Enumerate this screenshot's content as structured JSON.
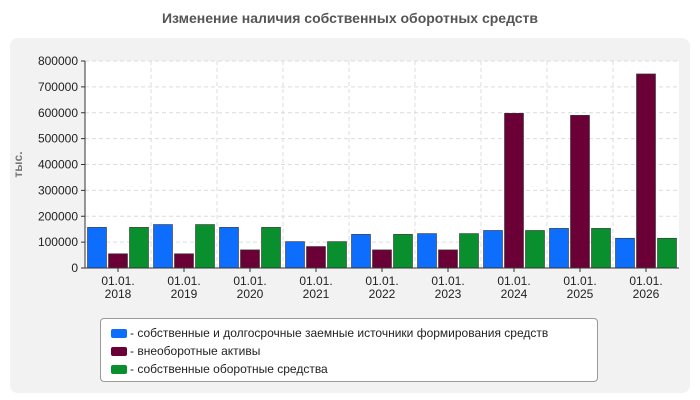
{
  "chart_data": {
    "type": "bar",
    "title": "Изменение наличия собственных оборотных средств",
    "ylabel": "тыс.",
    "xlabel": "",
    "ylim": [
      0,
      800000
    ],
    "yticks": [
      0,
      100000,
      200000,
      300000,
      400000,
      500000,
      600000,
      700000,
      800000
    ],
    "categories": [
      [
        "01.01.",
        "2018"
      ],
      [
        "01.01.",
        "2019"
      ],
      [
        "01.01.",
        "2020"
      ],
      [
        "01.01.",
        "2021"
      ],
      [
        "01.01.",
        "2022"
      ],
      [
        "01.01.",
        "2023"
      ],
      [
        "01.01.",
        "2024"
      ],
      [
        "01.01.",
        "2025"
      ],
      [
        "01.01.",
        "2026"
      ]
    ],
    "grid": true,
    "legend_position": "bottom",
    "series": [
      {
        "name": "- собственные и долгосрочные заемные источники формирования средств",
        "color": "#0d6efd",
        "values": [
          157000,
          168000,
          157000,
          102000,
          130000,
          133000,
          145000,
          153000,
          115000
        ]
      },
      {
        "name": "- внеоборотные активы",
        "color": "#6b0036",
        "values": [
          55000,
          55000,
          70000,
          83000,
          70000,
          70000,
          598000,
          590000,
          750000
        ]
      },
      {
        "name": "- собственные оборотные средства",
        "color": "#0a8f2e",
        "values": [
          157000,
          168000,
          157000,
          102000,
          130000,
          133000,
          145000,
          153000,
          115000
        ]
      }
    ]
  }
}
